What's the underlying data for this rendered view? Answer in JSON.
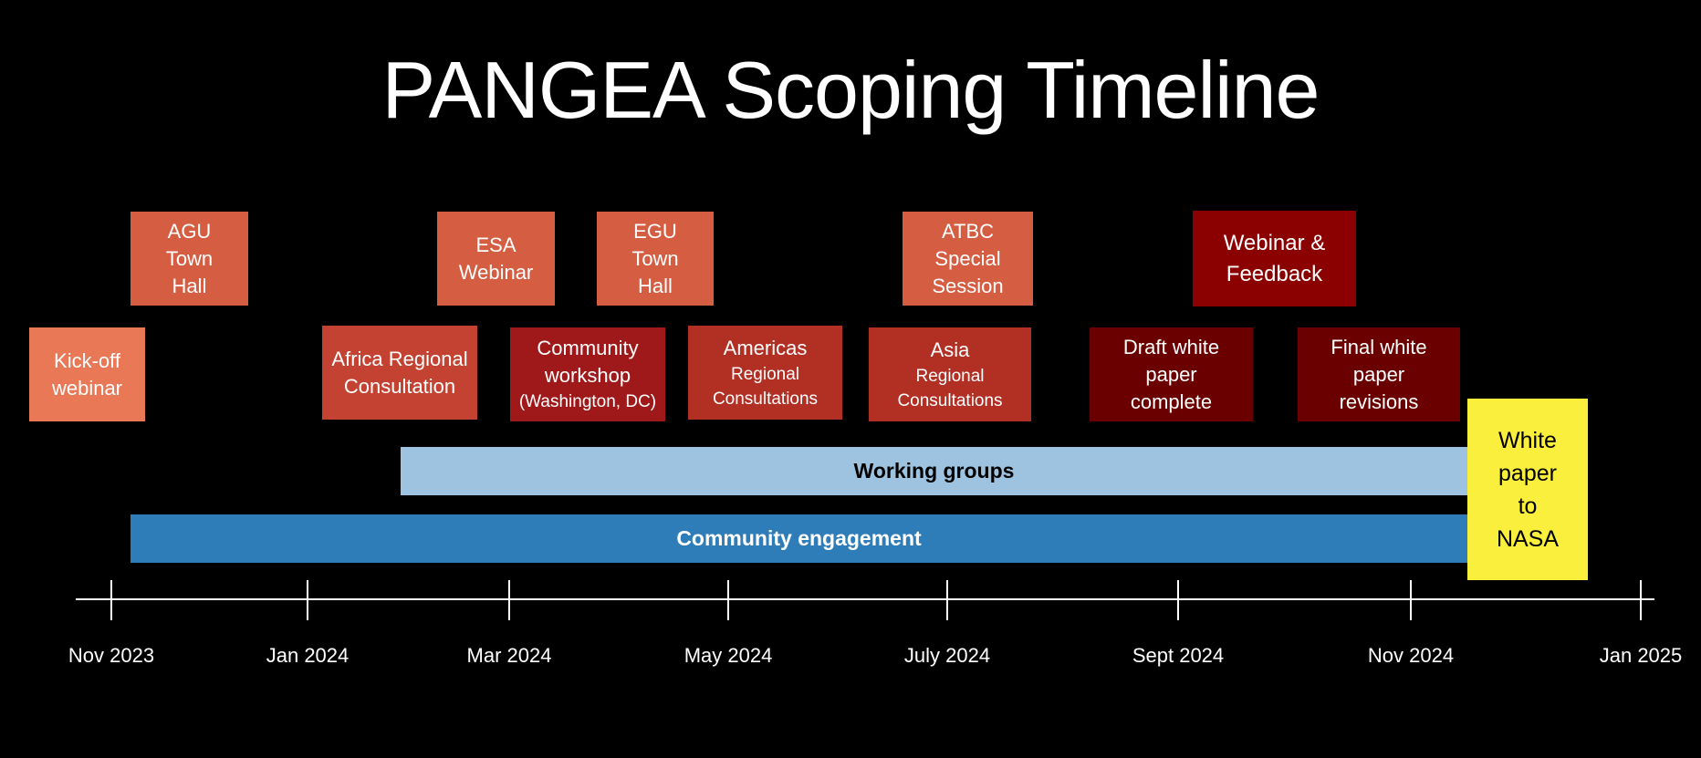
{
  "title": "PANGEA Scoping Timeline",
  "events": [
    {
      "id": "kickoff",
      "label": "Kick-off\nwebinar",
      "color": "#E97856"
    },
    {
      "id": "agu",
      "label": "AGU\nTown\nHall",
      "color": "#D55D42"
    },
    {
      "id": "esa",
      "label": "ESA\nWebinar",
      "color": "#D55D42"
    },
    {
      "id": "egu",
      "label": "EGU\nTown\nHall",
      "color": "#D55D42"
    },
    {
      "id": "africa",
      "label": "Africa Regional\nConsultation",
      "color": "#C44232"
    },
    {
      "id": "workshop",
      "label": "Community\nworkshop",
      "sub": "(Washington, DC)",
      "color": "#A0191A"
    },
    {
      "id": "americas",
      "label": "Americas",
      "sub": "Regional\nConsultations",
      "color": "#B22F24"
    },
    {
      "id": "atbc",
      "label": "ATBC\nSpecial\nSession",
      "color": "#D55D42"
    },
    {
      "id": "asia",
      "label": "Asia",
      "sub": "Regional\nConsultations",
      "color": "#B22F24"
    },
    {
      "id": "webinar-feedback",
      "label": "Webinar &\nFeedback",
      "color": "#8B0000"
    },
    {
      "id": "draft",
      "label": "Draft white\npaper\ncomplete",
      "color": "#6B0000"
    },
    {
      "id": "final",
      "label": "Final white\npaper\nrevisions",
      "color": "#6B0000"
    },
    {
      "id": "nasa",
      "label": "White\npaper\nto\nNASA",
      "color": "#F9EF3C"
    }
  ],
  "bars": [
    {
      "label": "Working groups",
      "color": "#9DC3E0"
    },
    {
      "label": "Community engagement",
      "color": "#2F7DB8"
    }
  ],
  "axis_labels": [
    "Nov 2023",
    "Jan 2024",
    "Mar 2024",
    "May 2024",
    "July 2024",
    "Sept 2024",
    "Nov 2024",
    "Jan 2025"
  ]
}
